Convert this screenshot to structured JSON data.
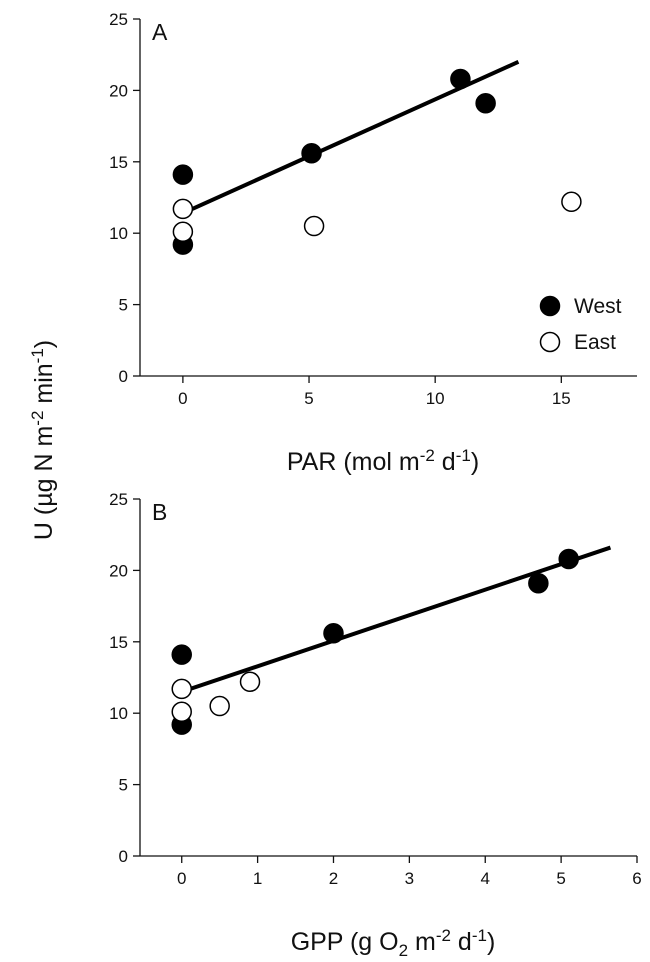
{
  "figure": {
    "ylabel": {
      "main": "U (µg N m",
      "sup1": "-2",
      "mid": " min",
      "sup2": "-1",
      "end": ")"
    }
  },
  "chart_data": [
    {
      "type": "scatter",
      "panel": "A",
      "xlabel": {
        "main": "PAR (mol m",
        "sup1": "-2",
        "mid": " d",
        "sup2": "-1",
        "end": ")"
      },
      "xlim": [
        -1.7,
        18
      ],
      "ylim": [
        0,
        25
      ],
      "xticks": [
        0,
        5,
        10,
        15
      ],
      "yticks": [
        0,
        5,
        10,
        15,
        20,
        25
      ],
      "legend": {
        "placement": "bottom-right",
        "entries": [
          "West",
          "East"
        ]
      },
      "series": [
        {
          "name": "West",
          "fill": "#000000",
          "points": [
            [
              0,
              14.1
            ],
            [
              0,
              9.2
            ],
            [
              5.1,
              15.6
            ],
            [
              11,
              20.8
            ],
            [
              12,
              19.1
            ]
          ]
        },
        {
          "name": "East",
          "fill": "#ffffff",
          "points": [
            [
              0,
              11.7
            ],
            [
              0,
              10.1
            ],
            [
              5.2,
              10.5
            ],
            [
              15.4,
              12.2
            ]
          ]
        }
      ],
      "fit_line": [
        [
          0,
          11.4
        ],
        [
          13.3,
          22
        ]
      ]
    },
    {
      "type": "scatter",
      "panel": "B",
      "xlabel": {
        "main": "GPP (g O",
        "sub": "2",
        "mid": " m",
        "sup1": "-2",
        "mid2": " d",
        "sup2": "-1",
        "end": ")"
      },
      "xlim": [
        -0.55,
        6
      ],
      "ylim": [
        0,
        25
      ],
      "xticks": [
        0,
        1,
        2,
        3,
        4,
        5,
        6
      ],
      "yticks": [
        0,
        5,
        10,
        15,
        20,
        25
      ],
      "series": [
        {
          "name": "West",
          "fill": "#000000",
          "points": [
            [
              0,
              14.1
            ],
            [
              0,
              9.2
            ],
            [
              2,
              15.6
            ],
            [
              4.7,
              19.1
            ],
            [
              5.1,
              20.8
            ]
          ]
        },
        {
          "name": "East",
          "fill": "#ffffff",
          "points": [
            [
              0,
              11.7
            ],
            [
              0,
              10.1
            ],
            [
              0.5,
              10.5
            ],
            [
              0.9,
              12.2
            ]
          ]
        }
      ],
      "fit_line": [
        [
          0,
          11.5
        ],
        [
          5.65,
          21.6
        ]
      ]
    }
  ]
}
